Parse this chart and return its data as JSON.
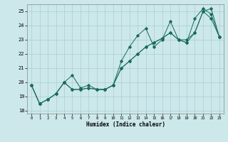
{
  "title": "",
  "xlabel": "Humidex (Indice chaleur)",
  "bg_color": "#cce8ea",
  "grid_color": "#aacdd4",
  "line_color": "#1a6b5a",
  "xlim": [
    -0.5,
    23.5
  ],
  "ylim": [
    17.8,
    25.5
  ],
  "yticks": [
    18,
    19,
    20,
    21,
    22,
    23,
    24,
    25
  ],
  "xticks": [
    0,
    1,
    2,
    3,
    4,
    5,
    6,
    7,
    8,
    9,
    10,
    11,
    12,
    13,
    14,
    15,
    16,
    17,
    18,
    19,
    20,
    21,
    22,
    23
  ],
  "line1_x": [
    0,
    1,
    2,
    3,
    4,
    5,
    6,
    7,
    8,
    9,
    10,
    11,
    12,
    13,
    14,
    15,
    16,
    17,
    18,
    19,
    20,
    21,
    22,
    23
  ],
  "line1_y": [
    19.8,
    18.5,
    18.8,
    19.2,
    20.0,
    19.5,
    19.5,
    19.6,
    19.5,
    19.5,
    19.8,
    21.0,
    21.5,
    22.0,
    22.5,
    22.8,
    23.1,
    23.5,
    23.0,
    23.0,
    23.5,
    25.0,
    25.2,
    23.2
  ],
  "line2_x": [
    0,
    1,
    2,
    3,
    4,
    5,
    6,
    7,
    8,
    9,
    10,
    11,
    12,
    13,
    14,
    15,
    16,
    17,
    18,
    19,
    20,
    21,
    22,
    23
  ],
  "line2_y": [
    19.8,
    18.5,
    18.8,
    19.2,
    20.0,
    20.5,
    19.6,
    19.8,
    19.5,
    19.5,
    19.8,
    21.5,
    22.5,
    23.3,
    23.8,
    22.5,
    23.0,
    24.3,
    23.0,
    22.8,
    24.5,
    25.2,
    24.8,
    23.2
  ],
  "line3_x": [
    0,
    1,
    2,
    3,
    4,
    5,
    6,
    7,
    8,
    9,
    10,
    11,
    12,
    13,
    14,
    15,
    16,
    17,
    18,
    19,
    20,
    21,
    22,
    23
  ],
  "line3_y": [
    19.8,
    18.5,
    18.8,
    19.2,
    20.0,
    19.5,
    19.5,
    19.6,
    19.5,
    19.5,
    19.8,
    21.0,
    21.5,
    22.0,
    22.5,
    22.8,
    23.1,
    23.5,
    23.0,
    22.8,
    23.5,
    25.0,
    24.5,
    23.2
  ]
}
